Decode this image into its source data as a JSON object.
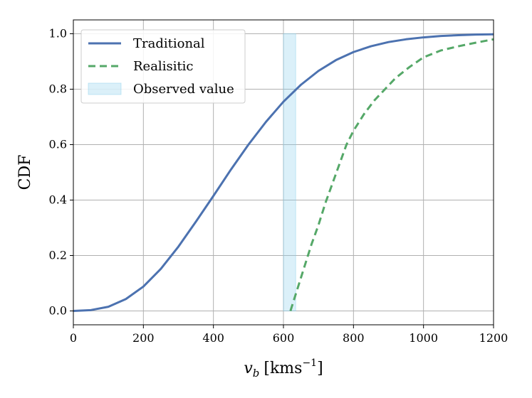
{
  "chart_data": {
    "type": "line",
    "title": "",
    "xlabel": "v_b [kms^-1]",
    "xlabel_parts": {
      "var": "v",
      "sub": "b",
      "open": "[kms",
      "sup": "−1",
      "close": "]"
    },
    "ylabel": "CDF",
    "xlim": [
      0,
      1200
    ],
    "ylim": [
      -0.05,
      1.05
    ],
    "xticks": [
      0,
      200,
      400,
      600,
      800,
      1000,
      1200
    ],
    "yticks": [
      0.0,
      0.2,
      0.4,
      0.6,
      0.8,
      1.0
    ],
    "xtick_labels": [
      "0",
      "200",
      "400",
      "600",
      "800",
      "1000",
      "1200"
    ],
    "ytick_labels": [
      "0.0",
      "0.2",
      "0.4",
      "0.6",
      "0.8",
      "1.0"
    ],
    "grid": true,
    "legend_position": "top-left",
    "series": [
      {
        "name": "Traditional",
        "color": "#4c72b0",
        "style": "solid",
        "x": [
          0,
          50,
          100,
          150,
          200,
          250,
          300,
          350,
          400,
          450,
          500,
          550,
          600,
          650,
          700,
          750,
          800,
          850,
          900,
          950,
          1000,
          1050,
          1100,
          1150,
          1200
        ],
        "y": [
          0.0,
          0.003,
          0.015,
          0.043,
          0.088,
          0.152,
          0.232,
          0.322,
          0.415,
          0.51,
          0.6,
          0.682,
          0.755,
          0.816,
          0.866,
          0.905,
          0.934,
          0.955,
          0.97,
          0.98,
          0.987,
          0.992,
          0.995,
          0.997,
          0.998
        ]
      },
      {
        "name": "Realisitic",
        "color": "#55a868",
        "style": "dashed",
        "x": [
          620,
          640,
          660,
          680,
          700,
          720,
          740,
          760,
          780,
          800,
          830,
          860,
          890,
          920,
          960,
          1000,
          1050,
          1100,
          1150,
          1200
        ],
        "y": [
          0.0,
          0.08,
          0.16,
          0.24,
          0.31,
          0.39,
          0.46,
          0.53,
          0.6,
          0.65,
          0.71,
          0.76,
          0.8,
          0.84,
          0.88,
          0.915,
          0.94,
          0.955,
          0.968,
          0.98
        ]
      }
    ],
    "bands": [
      {
        "name": "Observed value",
        "x_start": 600,
        "x_end": 635,
        "color": "#87ceeb",
        "opacity": 0.3
      }
    ]
  }
}
